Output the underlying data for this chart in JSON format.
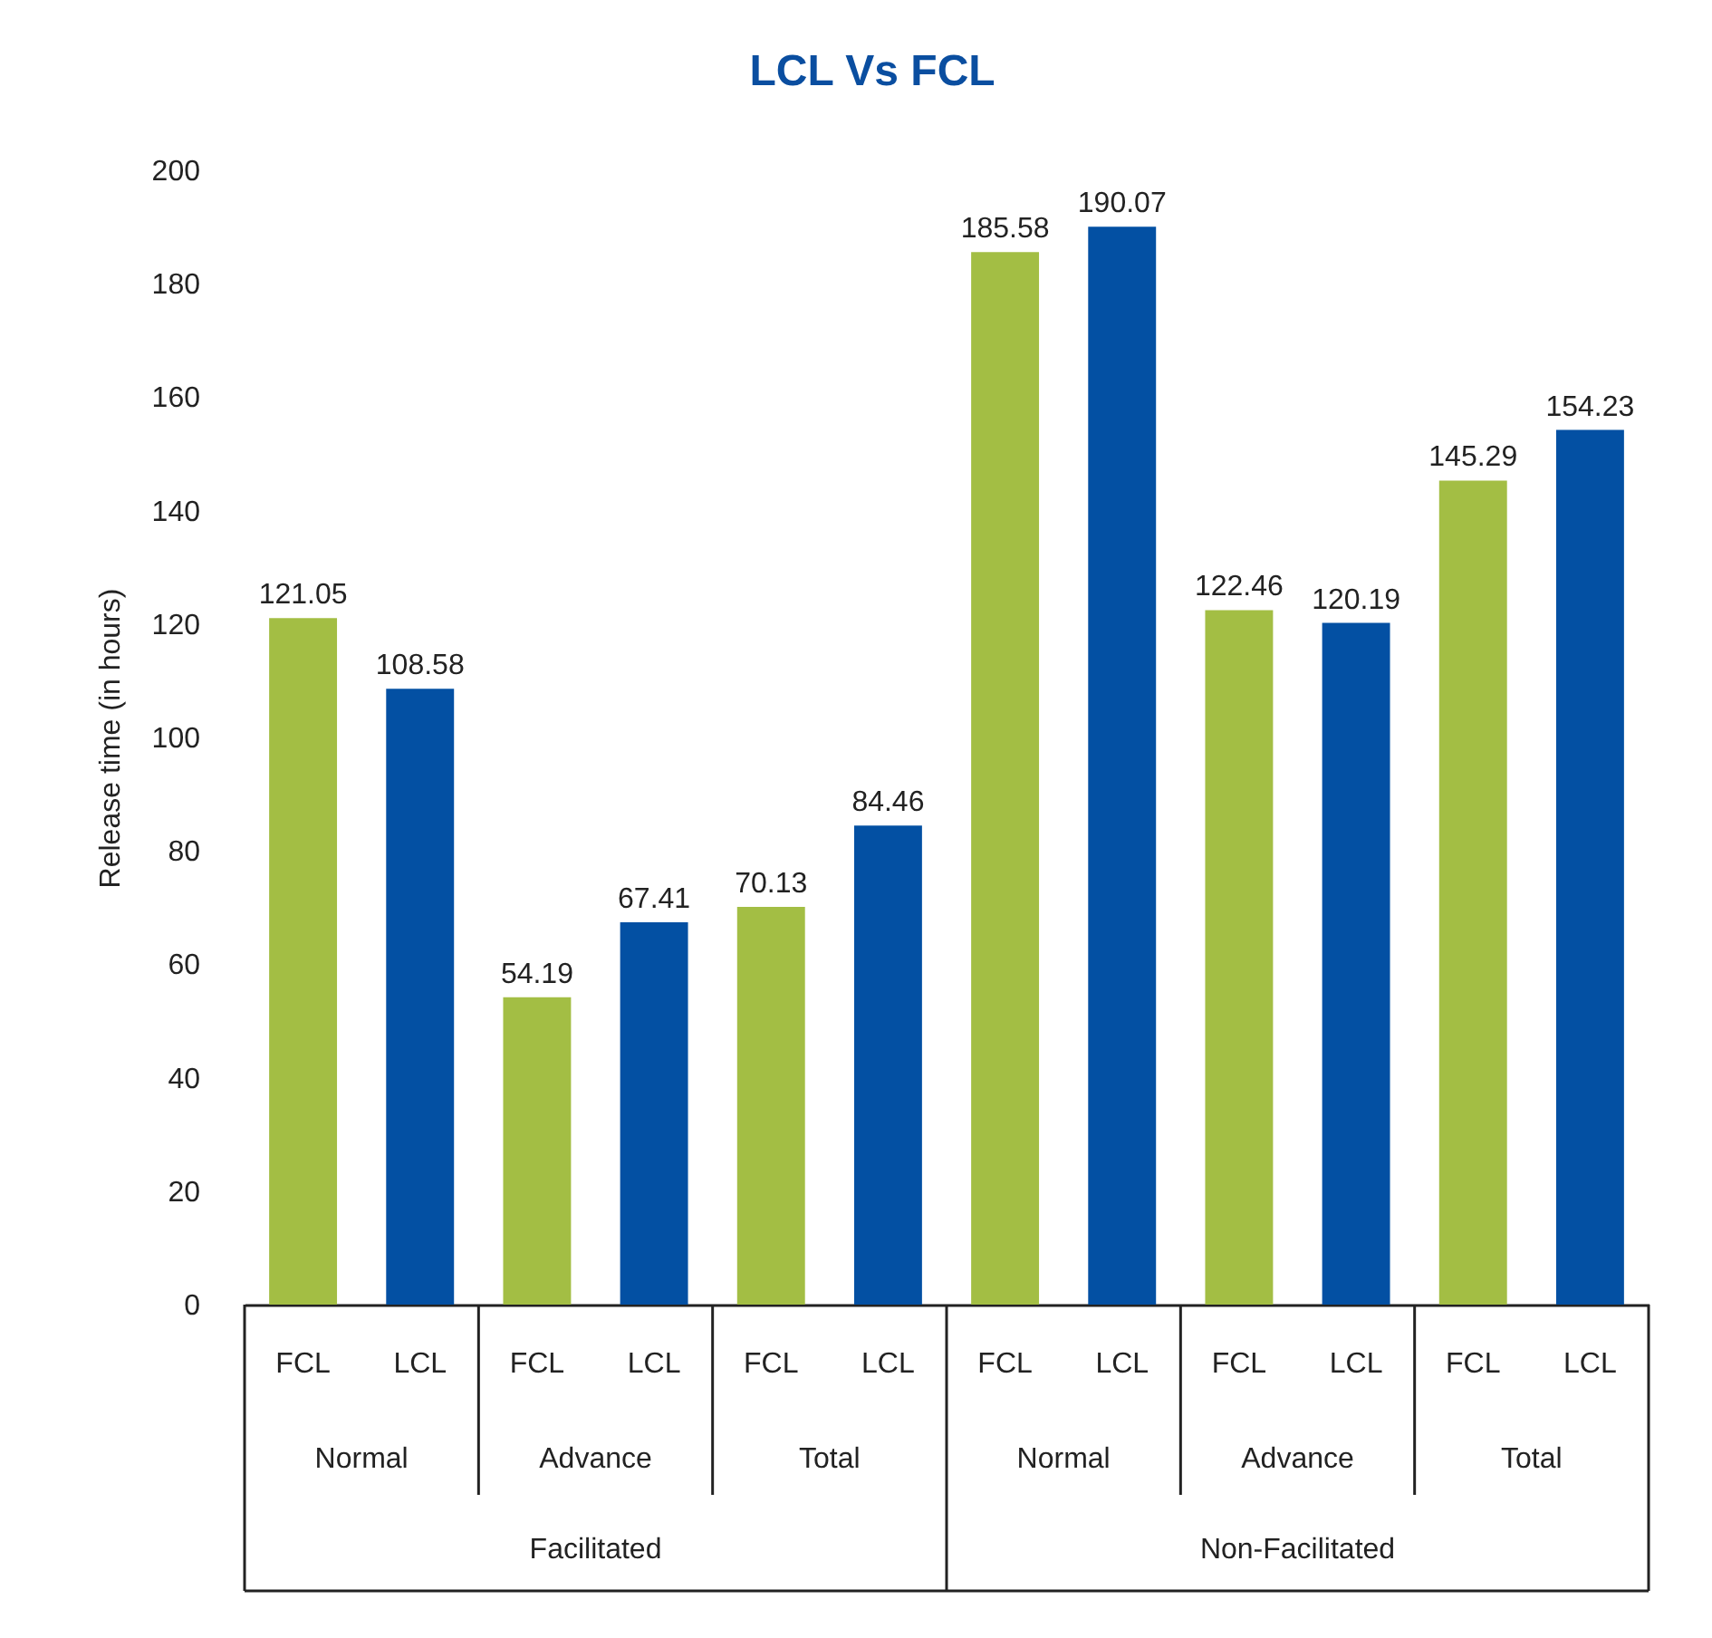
{
  "chart_data": {
    "type": "bar",
    "title": "LCL Vs FCL",
    "ylabel": "Release time (in hours)",
    "categories": [
      "FCL",
      "LCL",
      "FCL",
      "LCL",
      "FCL",
      "LCL",
      "FCL",
      "LCL",
      "FCL",
      "LCL",
      "FCL",
      "LCL"
    ],
    "values": [
      121.05,
      108.58,
      54.19,
      67.41,
      70.13,
      84.46,
      185.58,
      190.07,
      122.46,
      120.19,
      145.29,
      154.23
    ],
    "colors": [
      "#a3be44",
      "#0350a3",
      "#a3be44",
      "#0350a3",
      "#a3be44",
      "#0350a3",
      "#a3be44",
      "#0350a3",
      "#a3be44",
      "#0350a3",
      "#a3be44",
      "#0350a3"
    ],
    "ylim": [
      0,
      200
    ],
    "yticks": [
      0,
      20,
      40,
      60,
      80,
      100,
      120,
      140,
      160,
      180,
      200
    ],
    "data_labels": true,
    "annotations": [
      "Normal",
      "Advance",
      "Total",
      "Normal",
      "Advance",
      "Total",
      "Facilitated",
      "Non-Facilitated"
    ]
  }
}
